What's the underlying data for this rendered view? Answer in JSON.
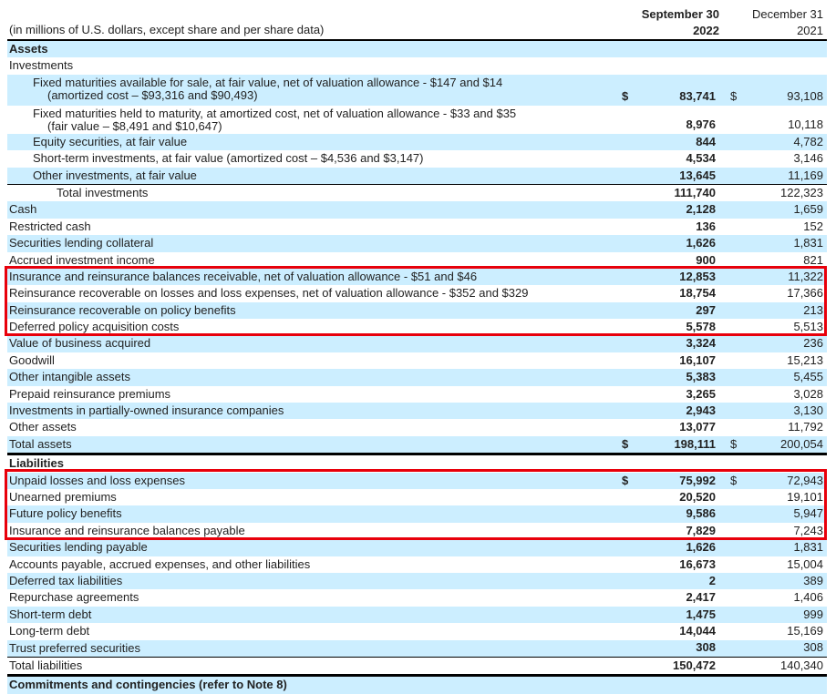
{
  "header": {
    "units_note": "(in millions of U.S. dollars, except share and per share data)",
    "col1_line1": "September 30",
    "col1_line2": "2022",
    "col2_line1": "December 31",
    "col2_line2": "2021"
  },
  "rows": [
    {
      "label": "Assets",
      "bold": true
    },
    {
      "label": "Investments"
    },
    {
      "label": "Fixed maturities available for sale, at fair value, net of valuation allowance - $147 and $14",
      "label2": "(amortized cost – $93,316 and $90,493)",
      "indent": 1,
      "sep": "83,741",
      "dec": "93,108",
      "dollar": "$"
    },
    {
      "label": "Fixed maturities held to maturity, at amortized cost, net of valuation allowance - $33 and $35",
      "label2": "(fair value – $8,491 and $10,647)",
      "indent": 1,
      "sep": "8,976",
      "dec": "10,118"
    },
    {
      "label": "Equity securities, at fair value",
      "indent": 1,
      "sep": "844",
      "dec": "4,782"
    },
    {
      "label": "Short-term investments, at fair value (amortized cost – $4,536 and $3,147)",
      "indent": 1,
      "sep": "4,534",
      "dec": "3,146"
    },
    {
      "label": "Other investments, at fair value",
      "indent": 1,
      "sep": "13,645",
      "dec": "11,169"
    },
    {
      "label": "Total investments",
      "indent": 2,
      "sep": "111,740",
      "dec": "122,323"
    },
    {
      "label": "Cash",
      "sep": "2,128",
      "dec": "1,659"
    },
    {
      "label": "Restricted cash",
      "sep": "136",
      "dec": "152"
    },
    {
      "label": "Securities lending collateral",
      "sep": "1,626",
      "dec": "1,831"
    },
    {
      "label": "Accrued investment income",
      "sep": "900",
      "dec": "821"
    },
    {
      "label": "Insurance and reinsurance balances receivable, net of valuation allowance - $51 and $46",
      "sep": "12,853",
      "dec": "11,322"
    },
    {
      "label": "Reinsurance recoverable on losses and loss expenses, net of valuation allowance - $352 and $329",
      "sep": "18,754",
      "dec": "17,366"
    },
    {
      "label": "Reinsurance recoverable on policy benefits",
      "sep": "297",
      "dec": "213"
    },
    {
      "label": "Deferred policy acquisition costs",
      "sep": "5,578",
      "dec": "5,513"
    },
    {
      "label": "Value of business acquired",
      "sep": "3,324",
      "dec": "236"
    },
    {
      "label": "Goodwill",
      "sep": "16,107",
      "dec": "15,213"
    },
    {
      "label": "Other intangible assets",
      "sep": "5,383",
      "dec": "5,455"
    },
    {
      "label": "Prepaid reinsurance premiums",
      "sep": "3,265",
      "dec": "3,028"
    },
    {
      "label": "Investments in partially-owned insurance companies",
      "sep": "2,943",
      "dec": "3,130"
    },
    {
      "label": "Other assets",
      "sep": "13,077",
      "dec": "11,792"
    },
    {
      "label": "Total assets",
      "sep": "198,111",
      "dec": "200,054",
      "dollar": "$"
    },
    {
      "label": "Liabilities",
      "bold": true
    },
    {
      "label": "Unpaid losses and loss expenses",
      "sep": "75,992",
      "dec": "72,943",
      "dollar": "$"
    },
    {
      "label": "Unearned premiums",
      "sep": "20,520",
      "dec": "19,101"
    },
    {
      "label": "Future policy benefits",
      "sep": "9,586",
      "dec": "5,947"
    },
    {
      "label": "Insurance and reinsurance balances payable",
      "sep": "7,829",
      "dec": "7,243"
    },
    {
      "label": "Securities lending payable",
      "sep": "1,626",
      "dec": "1,831"
    },
    {
      "label": "Accounts payable, accrued expenses, and other liabilities",
      "sep": "16,673",
      "dec": "15,004"
    },
    {
      "label": "Deferred tax liabilities",
      "sep": "2",
      "dec": "389"
    },
    {
      "label": "Repurchase agreements",
      "sep": "2,417",
      "dec": "1,406"
    },
    {
      "label": "Short-term debt",
      "sep": "1,475",
      "dec": "999"
    },
    {
      "label": "Long-term debt",
      "sep": "14,044",
      "dec": "15,169"
    },
    {
      "label": "Trust preferred securities",
      "sep": "308",
      "dec": "308"
    },
    {
      "label": "Total liabilities",
      "sep": "150,472",
      "dec": "140,340"
    },
    {
      "label": "Commitments and contingencies (refer to Note 8)",
      "bold": true
    }
  ],
  "highlight_color": "#e8000b",
  "row_shade_color": "#cceeff"
}
